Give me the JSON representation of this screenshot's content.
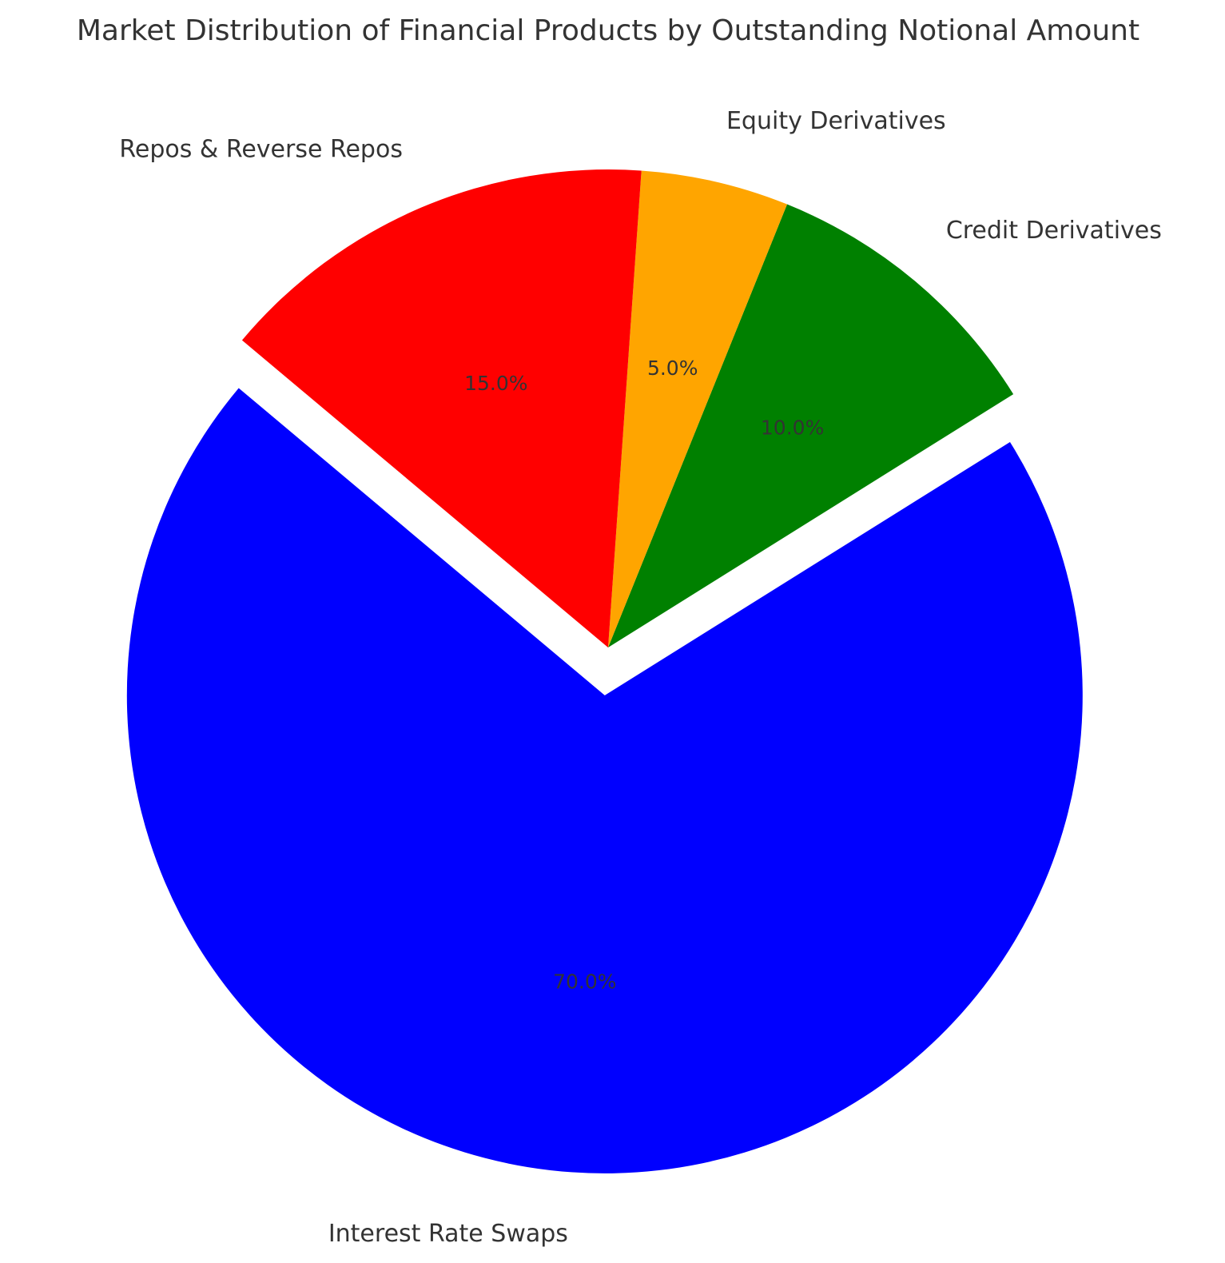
{
  "chart_data": {
    "type": "pie",
    "title": "Market Distribution of Financial Products by Outstanding Notional Amount",
    "slices": [
      {
        "label": "Interest Rate Swaps",
        "value": 70.0,
        "pct_label": "70.0%",
        "color": "#0000ff",
        "exploded": true
      },
      {
        "label": "Credit Derivatives",
        "value": 10.0,
        "pct_label": "10.0%",
        "color": "#008000",
        "exploded": false
      },
      {
        "label": "Equity Derivatives",
        "value": 5.0,
        "pct_label": "5.0%",
        "color": "#ffa500",
        "exploded": false
      },
      {
        "label": "Repos & Reverse Repos",
        "value": 15.0,
        "pct_label": "15.0%",
        "color": "#ff0000",
        "exploded": false
      }
    ],
    "start_angle_deg": 140,
    "direction": "counterclockwise",
    "legend": "none"
  }
}
